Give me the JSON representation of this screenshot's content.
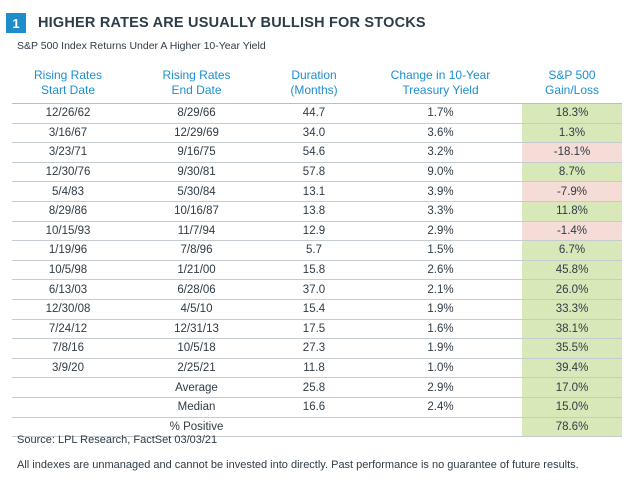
{
  "header": {
    "badge": "1",
    "title": "HIGHER RATES ARE USUALLY BULLISH FOR STOCKS",
    "subtitle": "S&P 500 Index Returns Under A Higher 10-Year Yield"
  },
  "table": {
    "columns": [
      [
        "Rising Rates",
        "Start Date"
      ],
      [
        "Rising Rates",
        "End Date"
      ],
      [
        "Duration",
        "(Months)"
      ],
      [
        "Change in 10-Year",
        "Treasury Yield"
      ],
      [
        "S&P 500",
        "Gain/Loss"
      ]
    ],
    "rows": [
      {
        "start": "12/26/62",
        "end": "8/29/66",
        "duration": "44.7",
        "change": "1.7%",
        "gain": "18.3%",
        "sign": "pos"
      },
      {
        "start": "3/16/67",
        "end": "12/29/69",
        "duration": "34.0",
        "change": "3.6%",
        "gain": "1.3%",
        "sign": "pos"
      },
      {
        "start": "3/23/71",
        "end": "9/16/75",
        "duration": "54.6",
        "change": "3.2%",
        "gain": "-18.1%",
        "sign": "neg"
      },
      {
        "start": "12/30/76",
        "end": "9/30/81",
        "duration": "57.8",
        "change": "9.0%",
        "gain": "8.7%",
        "sign": "pos"
      },
      {
        "start": "5/4/83",
        "end": "5/30/84",
        "duration": "13.1",
        "change": "3.9%",
        "gain": "-7.9%",
        "sign": "neg"
      },
      {
        "start": "8/29/86",
        "end": "10/16/87",
        "duration": "13.8",
        "change": "3.3%",
        "gain": "11.8%",
        "sign": "pos"
      },
      {
        "start": "10/15/93",
        "end": "11/7/94",
        "duration": "12.9",
        "change": "2.9%",
        "gain": "-1.4%",
        "sign": "neg"
      },
      {
        "start": "1/19/96",
        "end": "7/8/96",
        "duration": "5.7",
        "change": "1.5%",
        "gain": "6.7%",
        "sign": "pos"
      },
      {
        "start": "10/5/98",
        "end": "1/21/00",
        "duration": "15.8",
        "change": "2.6%",
        "gain": "45.8%",
        "sign": "pos"
      },
      {
        "start": "6/13/03",
        "end": "6/28/06",
        "duration": "37.0",
        "change": "2.1%",
        "gain": "26.0%",
        "sign": "pos"
      },
      {
        "start": "12/30/08",
        "end": "4/5/10",
        "duration": "15.4",
        "change": "1.9%",
        "gain": "33.3%",
        "sign": "pos"
      },
      {
        "start": "7/24/12",
        "end": "12/31/13",
        "duration": "17.5",
        "change": "1.6%",
        "gain": "38.1%",
        "sign": "pos"
      },
      {
        "start": "7/8/16",
        "end": "10/5/18",
        "duration": "27.3",
        "change": "1.9%",
        "gain": "35.5%",
        "sign": "pos"
      },
      {
        "start": "3/9/20",
        "end": "2/25/21",
        "duration": "11.8",
        "change": "1.0%",
        "gain": "39.4%",
        "sign": "pos"
      }
    ],
    "summary": [
      {
        "start": "",
        "end": "Average",
        "duration": "25.8",
        "change": "2.9%",
        "gain": "17.0%",
        "sign": "pos"
      },
      {
        "start": "",
        "end": "Median",
        "duration": "16.6",
        "change": "2.4%",
        "gain": "15.0%",
        "sign": "pos"
      },
      {
        "start": "",
        "end": "% Positive",
        "duration": "",
        "change": "",
        "gain": "78.6%",
        "sign": "pos"
      }
    ]
  },
  "footer": {
    "source": "Source: LPL Research, FactSet 03/03/21",
    "disclaimer": "All indexes are unmanaged and cannot be invested into directly. Past performance is no guarantee of future results."
  },
  "colors": {
    "accent_blue": "#1f8dcc",
    "gain_fill": "#d8e8b9",
    "loss_fill": "#f5dcd6"
  }
}
